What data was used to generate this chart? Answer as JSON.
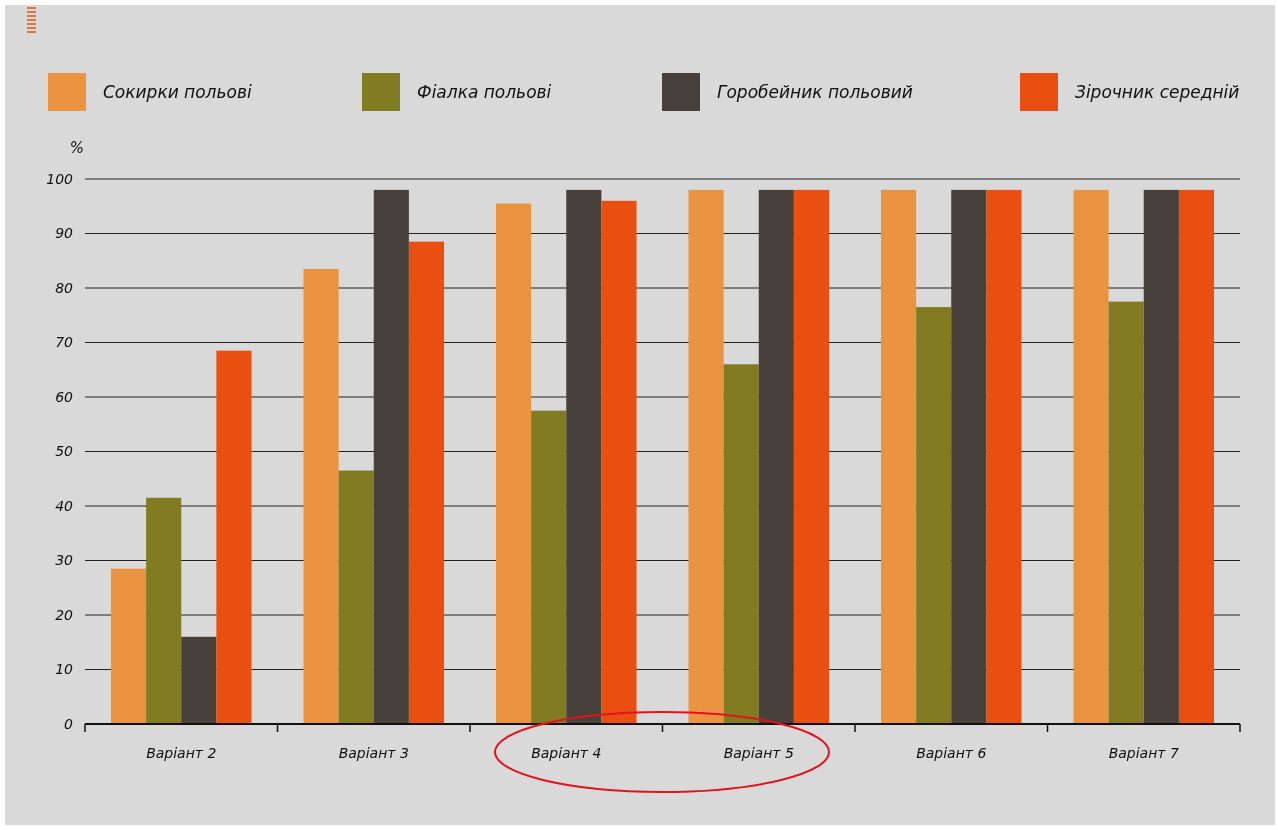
{
  "chart_data": {
    "type": "bar",
    "ylabel": "%",
    "categories": [
      "Варіант 2",
      "Варіант 3",
      "Варіант 4",
      "Варіант 5",
      "Варіант 6",
      "Варіант 7"
    ],
    "series": [
      {
        "name": "Сокирки польові",
        "color": "#ea9442",
        "values": [
          28.5,
          83.5,
          95.5,
          98,
          98,
          98
        ]
      },
      {
        "name": "Фіалка польові",
        "color": "#817b22",
        "values": [
          41.5,
          46.5,
          57.5,
          66,
          76.5,
          77.5
        ]
      },
      {
        "name": "Горобейник польовий",
        "color": "#48403a",
        "values": [
          16,
          98,
          98,
          98,
          98,
          98
        ]
      },
      {
        "name": "Зірочник середній",
        "color": "#e84f10",
        "values": [
          68.5,
          88.5,
          96,
          98,
          98,
          98
        ]
      }
    ],
    "ylim": [
      0,
      100
    ],
    "yticks": [
      0,
      10,
      20,
      30,
      40,
      50,
      60,
      70,
      80,
      90,
      100
    ],
    "grid": "y",
    "legend": "top"
  }
}
